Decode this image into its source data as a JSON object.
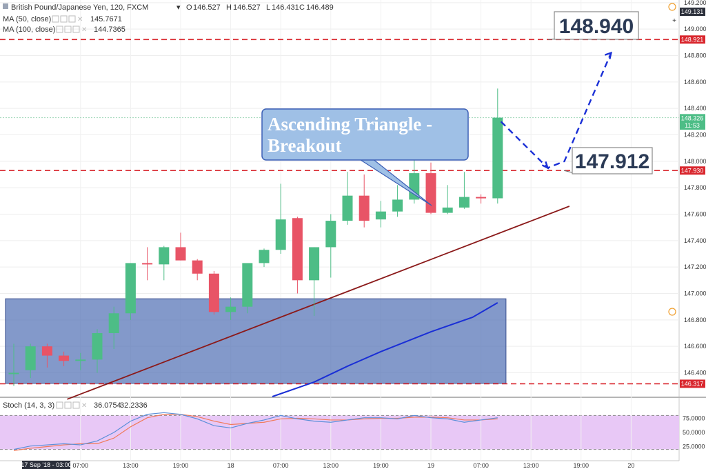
{
  "header": {
    "symbol": "British Pound/Japanese Yen, 120, FXCM",
    "ohlc": [
      {
        "label": "O",
        "value": "146.527"
      },
      {
        "label": "H",
        "value": "146.527"
      },
      {
        "label": "L",
        "value": "146.431"
      },
      {
        "label": "C",
        "value": "146.489"
      }
    ],
    "ma50_label": "MA (50, close)",
    "ma50_value": "145.7671",
    "ma100_label": "MA (100, close)",
    "ma100_value": "144.7365",
    "stoch_label": "Stoch (14, 3, 3)",
    "stoch_k": "36.0754",
    "stoch_d": "32.2336"
  },
  "colors": {
    "up": "#4dbd86",
    "down": "#e85466",
    "ma_blue": "#1a2fd6",
    "trendline": "#8b1a1a",
    "level_line": "#d9272e",
    "box_fill": "#4f6db3",
    "stoch_bg": "#e8c8f6",
    "stoch_k": "#5b8fd9",
    "stoch_d": "#f07a5a"
  },
  "annotations": {
    "target_label": "148.940",
    "retest_label": "147.912",
    "pattern_label_line1": "Ascending Triangle -",
    "pattern_label_line2": "Breakout"
  },
  "price_tags": [
    {
      "label": "149.131",
      "color": "#2b2f3a"
    },
    {
      "label": "148.921",
      "color": "#d9272e"
    },
    {
      "label": "148.326",
      "color": "#4dbd86"
    },
    {
      "label": "11:53",
      "color": "#4dbd86"
    },
    {
      "label": "147.930",
      "color": "#d9272e"
    },
    {
      "label": "146.317",
      "color": "#d9272e"
    }
  ],
  "chart_data": {
    "type": "candlestick",
    "y_ticks": [
      "149.200",
      "149.000",
      "148.800",
      "148.600",
      "148.400",
      "148.200",
      "148.000",
      "147.800",
      "147.600",
      "147.400",
      "147.200",
      "147.000",
      "146.800",
      "146.600",
      "146.400"
    ],
    "stoch_ticks": [
      "75.0000",
      "50.0000",
      "25.0000"
    ],
    "x_ticks": [
      "07:00",
      "13:00",
      "19:00",
      "18",
      "07:00",
      "13:00",
      "19:00",
      "19",
      "07:00",
      "13:00",
      "19:00",
      "20"
    ],
    "x_cursor_label": "17 Sep '18 - 03:00",
    "ylim": [
      146.22,
      149.22
    ],
    "levels": [
      148.921,
      147.93,
      146.317
    ],
    "candles": [
      {
        "o": 146.4,
        "h": 146.62,
        "l": 146.3,
        "c": 146.4
      },
      {
        "o": 146.42,
        "h": 146.62,
        "l": 146.36,
        "c": 146.6
      },
      {
        "o": 146.6,
        "h": 146.62,
        "l": 146.44,
        "c": 146.53
      },
      {
        "o": 146.53,
        "h": 146.56,
        "l": 146.45,
        "c": 146.49
      },
      {
        "o": 146.49,
        "h": 146.55,
        "l": 146.42,
        "c": 146.5
      },
      {
        "o": 146.5,
        "h": 146.73,
        "l": 146.4,
        "c": 146.7
      },
      {
        "o": 146.7,
        "h": 146.9,
        "l": 146.58,
        "c": 146.85
      },
      {
        "o": 146.85,
        "h": 147.23,
        "l": 146.8,
        "c": 147.23
      },
      {
        "o": 147.23,
        "h": 147.35,
        "l": 147.1,
        "c": 147.22
      },
      {
        "o": 147.22,
        "h": 147.36,
        "l": 147.1,
        "c": 147.35
      },
      {
        "o": 147.35,
        "h": 147.46,
        "l": 147.25,
        "c": 147.25
      },
      {
        "o": 147.25,
        "h": 147.26,
        "l": 147.1,
        "c": 147.15
      },
      {
        "o": 147.15,
        "h": 147.17,
        "l": 146.84,
        "c": 146.86
      },
      {
        "o": 146.86,
        "h": 146.97,
        "l": 146.8,
        "c": 146.9
      },
      {
        "o": 146.9,
        "h": 147.22,
        "l": 146.85,
        "c": 147.23
      },
      {
        "o": 147.23,
        "h": 147.34,
        "l": 147.2,
        "c": 147.33
      },
      {
        "o": 147.33,
        "h": 147.83,
        "l": 147.3,
        "c": 147.56
      },
      {
        "o": 147.57,
        "h": 147.58,
        "l": 147.0,
        "c": 147.1
      },
      {
        "o": 147.1,
        "h": 147.35,
        "l": 146.83,
        "c": 147.35
      },
      {
        "o": 147.35,
        "h": 147.6,
        "l": 147.12,
        "c": 147.55
      },
      {
        "o": 147.55,
        "h": 147.92,
        "l": 147.52,
        "c": 147.74
      },
      {
        "o": 147.74,
        "h": 147.9,
        "l": 147.5,
        "c": 147.55
      },
      {
        "o": 147.56,
        "h": 147.7,
        "l": 147.5,
        "c": 147.62
      },
      {
        "o": 147.62,
        "h": 147.82,
        "l": 147.58,
        "c": 147.71
      },
      {
        "o": 147.71,
        "h": 148.02,
        "l": 147.68,
        "c": 147.91
      },
      {
        "o": 147.91,
        "h": 147.99,
        "l": 147.6,
        "c": 147.61
      },
      {
        "o": 147.61,
        "h": 147.82,
        "l": 147.6,
        "c": 147.65
      },
      {
        "o": 147.65,
        "h": 147.92,
        "l": 147.64,
        "c": 147.73
      },
      {
        "o": 147.73,
        "h": 147.75,
        "l": 147.68,
        "c": 147.72
      },
      {
        "o": 147.72,
        "h": 148.55,
        "l": 147.68,
        "c": 148.33
      }
    ],
    "ma_line": [
      {
        "i": 15.5,
        "v": 146.22
      },
      {
        "i": 18.0,
        "v": 146.33
      },
      {
        "i": 20.0,
        "v": 146.45
      },
      {
        "i": 22.0,
        "v": 146.56
      },
      {
        "i": 25.0,
        "v": 146.71
      },
      {
        "i": 27.5,
        "v": 146.82
      },
      {
        "i": 29.0,
        "v": 146.93
      }
    ],
    "trendline": [
      {
        "i": 3.2,
        "v": 146.2
      },
      {
        "i": 33.3,
        "v": 147.66
      }
    ],
    "consolidation_box": {
      "i0": -0.5,
      "i1": 29.5,
      "v0": 146.32,
      "v1": 146.96
    },
    "projection_path": [
      {
        "i": 29.2,
        "v": 148.3
      },
      {
        "i": 32.0,
        "v": 147.95
      },
      {
        "i": 33.0,
        "v": 148.0
      },
      {
        "i": 35.8,
        "v": 148.82
      }
    ],
    "stoch_k_values": [
      20,
      26,
      28,
      30,
      28,
      35,
      50,
      70,
      82,
      85,
      82,
      74,
      62,
      58,
      66,
      72,
      80,
      74,
      70,
      68,
      72,
      76,
      76,
      74,
      80,
      76,
      74,
      68,
      72,
      76
    ],
    "stoch_d_values": [
      18,
      22,
      25,
      28,
      30,
      30,
      40,
      60,
      76,
      82,
      82,
      78,
      70,
      64,
      66,
      68,
      74,
      75,
      74,
      72,
      72,
      74,
      75,
      75,
      77,
      77,
      76,
      72,
      72,
      74
    ]
  }
}
